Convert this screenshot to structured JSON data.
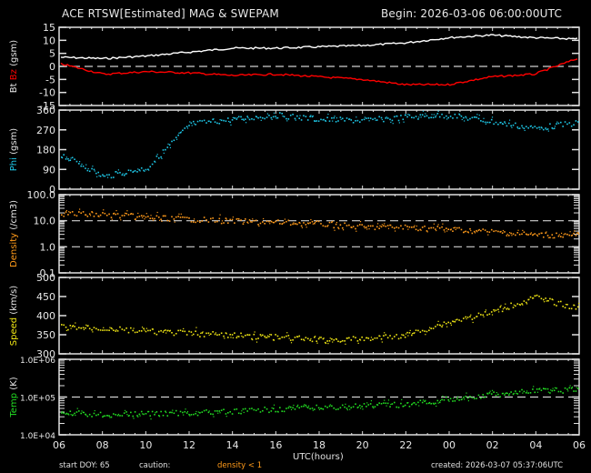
{
  "header": {
    "title": "ACE RTSW[Estimated] MAG & SWEPAM",
    "begin": "Begin: 2026-03-06 06:00:00UTC"
  },
  "footer": {
    "start_doy": "start DOY:  65",
    "caution_label": "caution:",
    "caution_value": "density < 1",
    "created": "created: 2026-03-07 05:37:06UTC",
    "xlabel": "UTC(hours)"
  },
  "colors": {
    "bt": "#ffffff",
    "bz": "#ff0000",
    "phi": "#1ec8e8",
    "density": "#ff9a1a",
    "speed": "#f0e614",
    "temp": "#22dd22",
    "axis": "#e0e0e0",
    "background": "#000000"
  },
  "chart_data": [
    {
      "type": "line",
      "title": "Bt / Bz (gsm)",
      "ylabel": "Bt  Bz  (gsm)",
      "ylim": [
        -15,
        15
      ],
      "yticks": [
        "15",
        "10",
        "5",
        "0",
        "-5",
        "-10",
        "-15"
      ],
      "reference_line": 0,
      "x": [
        "06",
        "08",
        "10",
        "12",
        "14",
        "16",
        "18",
        "20",
        "22",
        "00",
        "02",
        "04",
        "06"
      ],
      "series": [
        {
          "name": "Bt",
          "color": "#ffffff",
          "values": [
            3.5,
            3,
            4,
            5.5,
            7,
            7,
            7.5,
            8,
            9,
            11,
            12,
            11,
            10.5
          ]
        },
        {
          "name": "Bz",
          "color": "#ff0000",
          "values": [
            1,
            -3,
            -2,
            -2.5,
            -3.5,
            -3,
            -4,
            -5,
            -7,
            -7,
            -4,
            -3,
            3
          ]
        }
      ]
    },
    {
      "type": "scatter",
      "title": "Phi (gsm)",
      "ylabel": "Phi  (gsm)",
      "ylim": [
        0,
        360
      ],
      "yticks": [
        "360",
        "270",
        "180",
        "90",
        "0"
      ],
      "x": [
        "06",
        "08",
        "10",
        "12",
        "14",
        "16",
        "18",
        "20",
        "22",
        "00",
        "02",
        "04",
        "06"
      ],
      "series": [
        {
          "name": "Phi",
          "color": "#1ec8e8",
          "values": [
            160,
            60,
            100,
            300,
            320,
            340,
            320,
            315,
            330,
            340,
            310,
            280,
            305
          ]
        }
      ]
    },
    {
      "type": "scatter",
      "title": "Density (/cm3)",
      "ylabel": "Density  (/cm3)",
      "yscale": "log",
      "ylim": [
        0.1,
        100
      ],
      "yticks": [
        "100.0",
        "10.0",
        "1.0",
        "0.1"
      ],
      "reference_lines": [
        10,
        1
      ],
      "x": [
        "06",
        "08",
        "10",
        "12",
        "14",
        "16",
        "18",
        "20",
        "22",
        "00",
        "02",
        "04",
        "06"
      ],
      "series": [
        {
          "name": "Density",
          "color": "#ff9a1a",
          "values": [
            20,
            18,
            14,
            12,
            10,
            9,
            8,
            6,
            6,
            5,
            4,
            3,
            3
          ]
        }
      ]
    },
    {
      "type": "scatter",
      "title": "Speed (km/s)",
      "ylabel": "Speed  (km/s)",
      "ylim": [
        300,
        500
      ],
      "yticks": [
        "500",
        "450",
        "400",
        "350",
        "300"
      ],
      "x": [
        "06",
        "08",
        "10",
        "12",
        "14",
        "16",
        "18",
        "20",
        "22",
        "00",
        "02",
        "04",
        "06"
      ],
      "series": [
        {
          "name": "Speed",
          "color": "#f0e614",
          "values": [
            372,
            368,
            360,
            355,
            350,
            345,
            338,
            340,
            350,
            385,
            410,
            450,
            420
          ]
        }
      ]
    },
    {
      "type": "scatter",
      "title": "Temp (K)",
      "ylabel": "Temp  (K)",
      "yscale": "log",
      "ylim": [
        10000,
        1000000
      ],
      "yticks": [
        "1.0E+06",
        "1.0E+05",
        "1.0E+04"
      ],
      "reference_line": 100000,
      "xlabel": "UTC(hours)",
      "x": [
        "06",
        "08",
        "10",
        "12",
        "14",
        "16",
        "18",
        "20",
        "22",
        "00",
        "02",
        "04",
        "06"
      ],
      "series": [
        {
          "name": "Temp",
          "color": "#22dd22",
          "values": [
            40000,
            35000,
            38000,
            40000,
            42000,
            50000,
            55000,
            60000,
            65000,
            90000,
            120000,
            150000,
            160000
          ]
        }
      ]
    }
  ]
}
